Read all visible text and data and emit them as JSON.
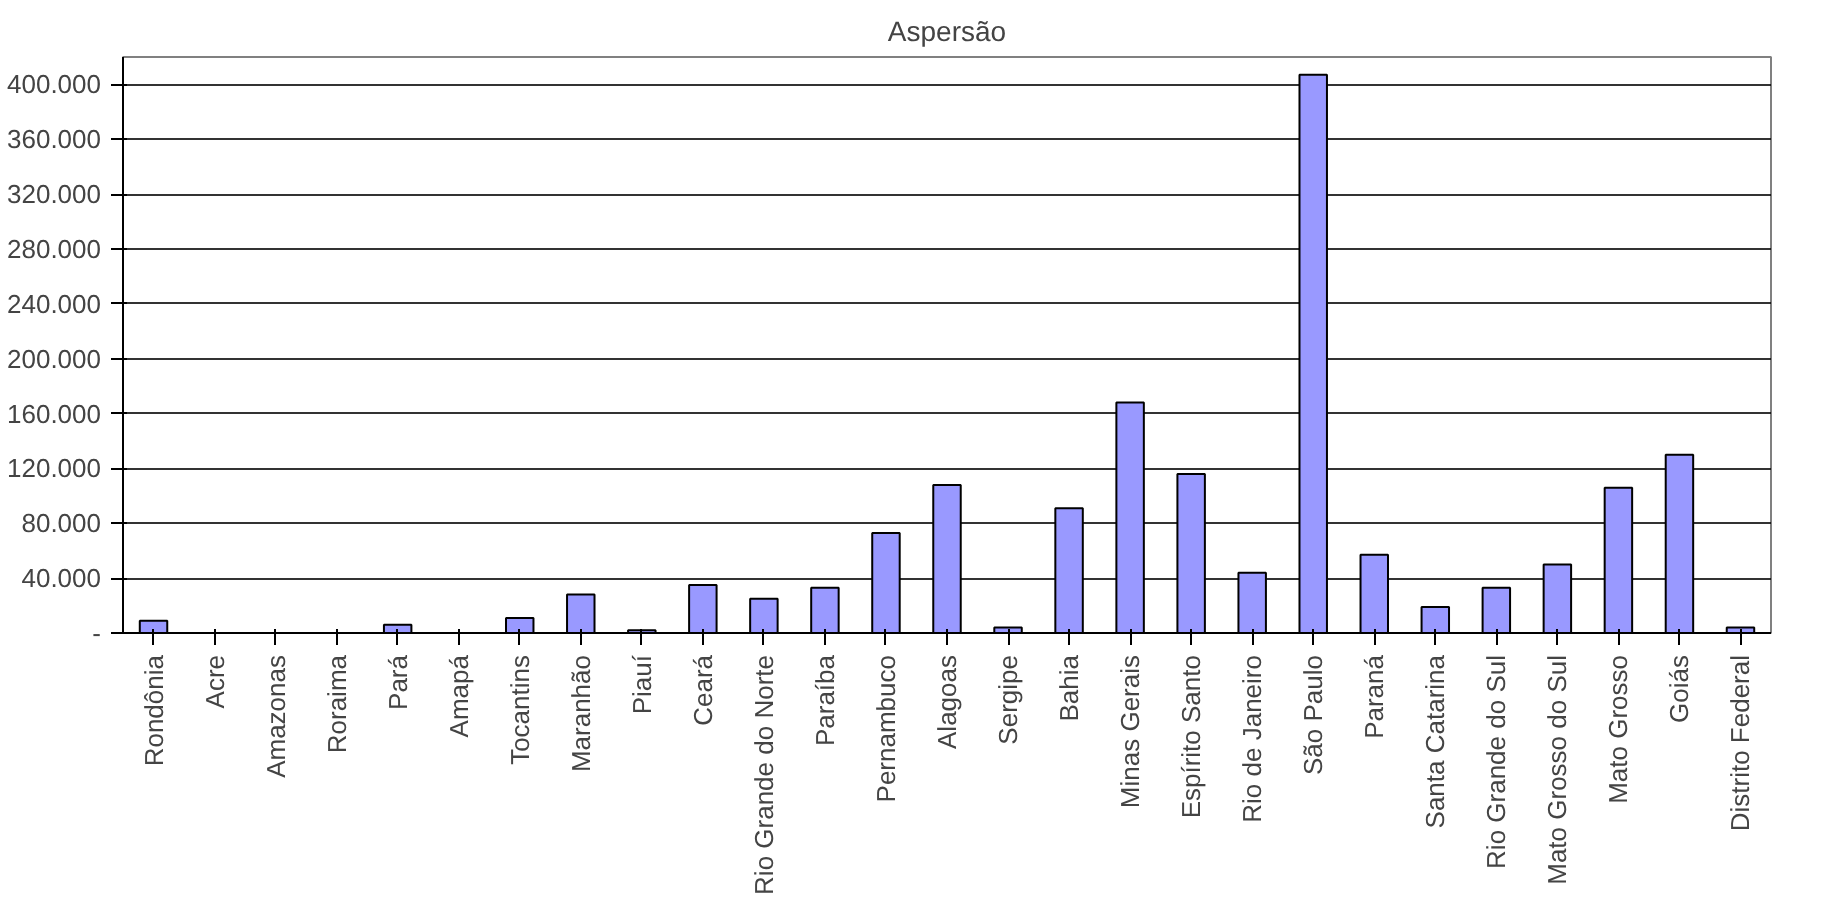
{
  "chart_data": {
    "type": "bar",
    "title": "Aspersão",
    "categories": [
      "Rondônia",
      "Acre",
      "Amazonas",
      "Roraima",
      "Pará",
      "Amapá",
      "Tocantins",
      "Maranhão",
      "Piauí",
      "Ceará",
      "Rio Grande do Norte",
      "Paraíba",
      "Pernambuco",
      "Alagoas",
      "Sergipe",
      "Bahia",
      "Minas Gerais",
      "Espírito Santo",
      "Rio de Janeiro",
      "São Paulo",
      "Paraná",
      "Santa Catarina",
      "Rio Grande do Sul",
      "Mato Grosso do Sul",
      "Mato Grosso",
      "Goiás",
      "Distrito Federal"
    ],
    "values": [
      9000,
      0,
      0,
      0,
      6000,
      0,
      11000,
      28000,
      2000,
      35000,
      25000,
      33000,
      73000,
      108000,
      4000,
      91000,
      168000,
      116000,
      44000,
      407000,
      57000,
      19000,
      33000,
      50000,
      106000,
      130000,
      4000
    ],
    "color": "#9999ff",
    "ylim": [
      0,
      420000
    ],
    "yticks": [
      {
        "value": 0,
        "label": "-"
      },
      {
        "value": 40000,
        "label": "40.000"
      },
      {
        "value": 80000,
        "label": "80.000"
      },
      {
        "value": 120000,
        "label": "120.000"
      },
      {
        "value": 160000,
        "label": "160.000"
      },
      {
        "value": 200000,
        "label": "200.000"
      },
      {
        "value": 240000,
        "label": "240.000"
      },
      {
        "value": 280000,
        "label": "280.000"
      },
      {
        "value": 320000,
        "label": "320.000"
      },
      {
        "value": 360000,
        "label": "360.000"
      },
      {
        "value": 400000,
        "label": "400.000"
      }
    ],
    "grid": "y"
  }
}
